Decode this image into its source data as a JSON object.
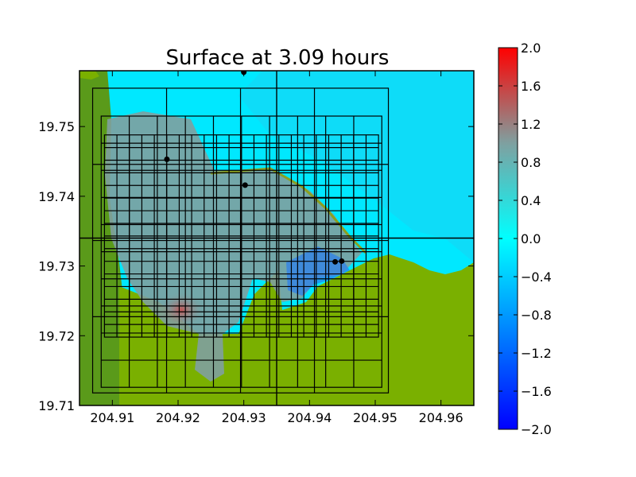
{
  "chart_data": {
    "type": "heatmap",
    "title": "Surface at 3.09 hours",
    "xlim": [
      204.905,
      204.965
    ],
    "ylim": [
      19.71,
      19.758
    ],
    "x_ticks": [
      "204.91",
      "204.92",
      "204.93",
      "204.94",
      "204.95",
      "204.96"
    ],
    "y_ticks": [
      "19.71",
      "19.72",
      "19.73",
      "19.74",
      "19.75"
    ],
    "colorbar": {
      "min": -2.0,
      "max": 2.0,
      "ticks": [
        "2.0",
        "1.6",
        "1.2",
        "0.8",
        "0.4",
        "0.0",
        "−0.4",
        "−0.8",
        "−1.2",
        "−1.6",
        "−2.0"
      ],
      "colors": [
        "#0000ff",
        "#00ffff",
        "#7fa0a0",
        "#ff0000"
      ]
    },
    "land_color": "#7ab000",
    "water_color": "#00e8ff",
    "gauges": [
      {
        "x": 204.93,
        "y": 19.7578
      },
      {
        "x": 204.9183,
        "y": 19.7453
      },
      {
        "x": 204.9302,
        "y": 19.7416
      },
      {
        "x": 204.9439,
        "y": 19.7306
      },
      {
        "x": 204.9449,
        "y": 19.7307
      }
    ],
    "grid_levels": [
      {
        "x": [
          204.907,
          204.952
        ],
        "y": [
          19.7118,
          19.7555
        ],
        "nx": 4,
        "ny": 4
      },
      {
        "x": [
          204.9083,
          204.951
        ],
        "y": [
          19.7126,
          19.7515
        ],
        "nx": 10,
        "ny": 10
      },
      {
        "x": [
          204.9088,
          204.9505
        ],
        "y": [
          19.7198,
          19.7488
        ],
        "nx": 22,
        "ny": 16
      }
    ],
    "cross_lines": {
      "x": 204.935,
      "y": 19.734
    }
  }
}
